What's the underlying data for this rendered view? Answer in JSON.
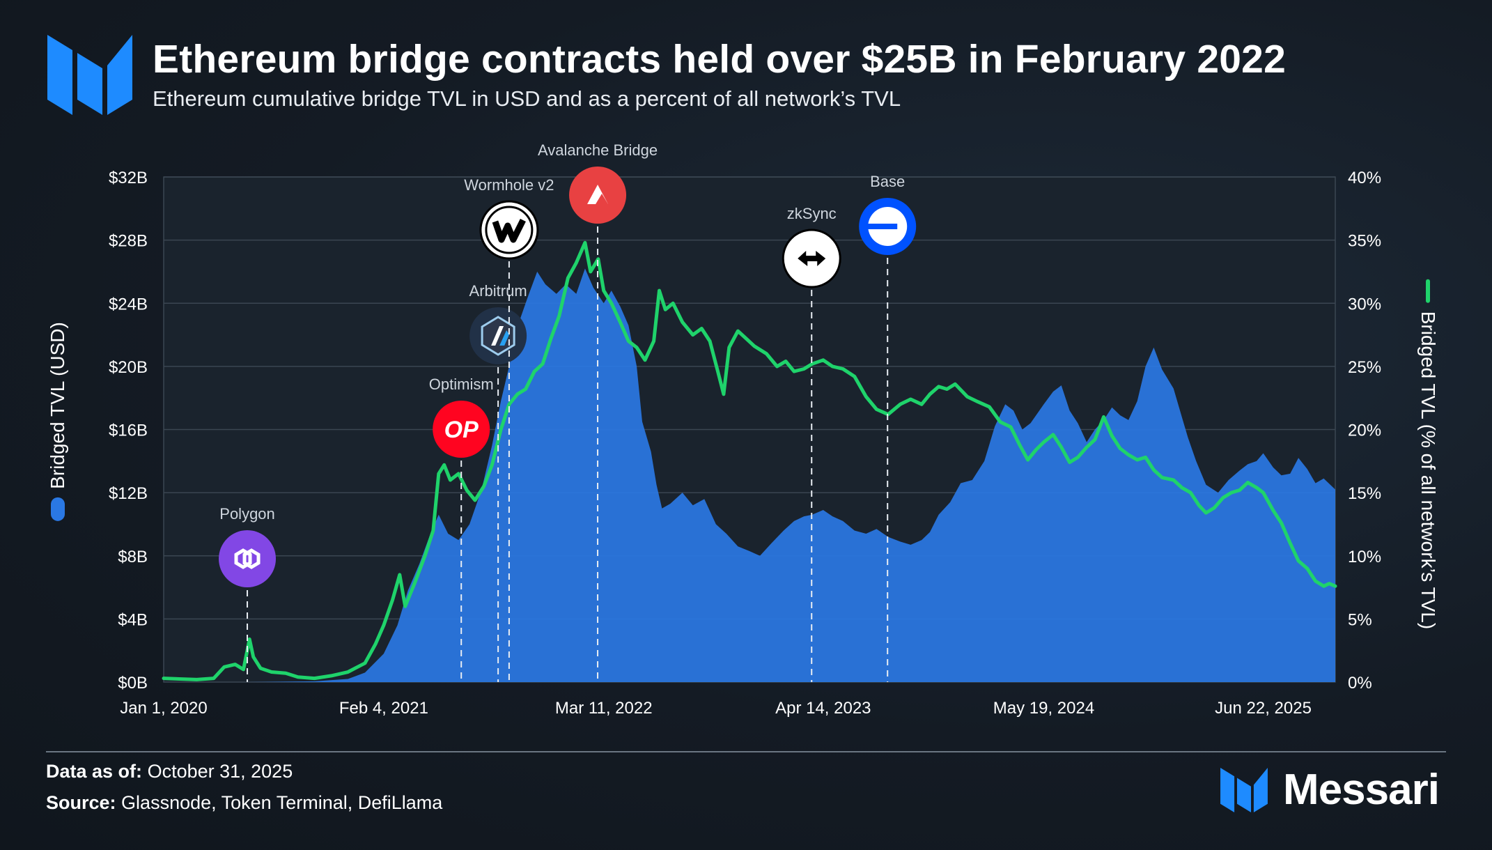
{
  "header": {
    "title": "Ethereum bridge contracts held over $25B in February 2022",
    "subtitle": "Ethereum cumulative bridge TVL in USD and as a percent of all network’s TVL"
  },
  "footer": {
    "data_as_of_label": "Data as of:",
    "data_as_of_value": "October 31, 2025",
    "source_label": "Source:",
    "source_value": "Glassnode, Token Terminal, DefiLlama",
    "brand": "Messari"
  },
  "colors": {
    "area": "#2a78e4",
    "line": "#1fd36b",
    "grid": "#3b4652",
    "accent": "#1e8bff"
  },
  "chart_data": {
    "type": "area",
    "x_start": "2020-01-01",
    "x_end": "2025-10-31",
    "xticks": [
      {
        "date": "2020-01-01",
        "label": "Jan 1, 2020"
      },
      {
        "date": "2021-02-04",
        "label": "Feb 4, 2021"
      },
      {
        "date": "2022-03-11",
        "label": "Mar 11, 2022"
      },
      {
        "date": "2023-04-14",
        "label": "Apr 14, 2023"
      },
      {
        "date": "2024-05-19",
        "label": "May 19, 2024"
      },
      {
        "date": "2025-06-22",
        "label": "Jun 22, 2025"
      }
    ],
    "y_left": {
      "label": "Bridged TVL (USD)",
      "min": 0,
      "max": 32,
      "ticks": [
        "$0B",
        "$4B",
        "$8B",
        "$12B",
        "$16B",
        "$20B",
        "$24B",
        "$28B",
        "$32B"
      ]
    },
    "y_right": {
      "label": "Bridged TVL (% of all network’s TVL)",
      "min": 0,
      "max": 40,
      "ticks": [
        "0%",
        "5%",
        "10%",
        "15%",
        "20%",
        "25%",
        "30%",
        "35%",
        "40%"
      ]
    },
    "series": [
      {
        "name": "Bridged TVL (USD)",
        "type": "area",
        "unit": "$B",
        "points": [
          [
            "2020-01-01",
            0
          ],
          [
            "2020-06-01",
            0
          ],
          [
            "2020-10-01",
            0.05
          ],
          [
            "2020-12-01",
            0.2
          ],
          [
            "2021-01-01",
            0.6
          ],
          [
            "2021-02-04",
            1.8
          ],
          [
            "2021-03-01",
            3.6
          ],
          [
            "2021-03-20",
            5.8
          ],
          [
            "2021-04-10",
            7.5
          ],
          [
            "2021-05-01",
            9.5
          ],
          [
            "2021-05-15",
            10.6
          ],
          [
            "2021-06-01",
            9.4
          ],
          [
            "2021-06-20",
            9.0
          ],
          [
            "2021-07-10",
            10.0
          ],
          [
            "2021-08-01",
            12.2
          ],
          [
            "2021-08-20",
            15.0
          ],
          [
            "2021-09-05",
            17.8
          ],
          [
            "2021-09-20",
            20.0
          ],
          [
            "2021-10-10",
            23.0
          ],
          [
            "2021-10-25",
            24.5
          ],
          [
            "2021-11-10",
            26.0
          ],
          [
            "2021-11-25",
            25.2
          ],
          [
            "2021-12-15",
            24.6
          ],
          [
            "2022-01-01",
            25.2
          ],
          [
            "2022-01-20",
            24.6
          ],
          [
            "2022-02-05",
            26.2
          ],
          [
            "2022-02-20",
            25.0
          ],
          [
            "2022-03-11",
            24.0
          ],
          [
            "2022-03-25",
            24.8
          ],
          [
            "2022-04-10",
            23.8
          ],
          [
            "2022-04-25",
            22.6
          ],
          [
            "2022-05-10",
            20.0
          ],
          [
            "2022-05-20",
            16.5
          ],
          [
            "2022-06-05",
            14.6
          ],
          [
            "2022-06-15",
            12.5
          ],
          [
            "2022-06-25",
            11.0
          ],
          [
            "2022-07-10",
            11.3
          ],
          [
            "2022-08-01",
            12.0
          ],
          [
            "2022-08-20",
            11.2
          ],
          [
            "2022-09-10",
            11.6
          ],
          [
            "2022-10-01",
            10.0
          ],
          [
            "2022-10-20",
            9.4
          ],
          [
            "2022-11-10",
            8.6
          ],
          [
            "2022-12-01",
            8.3
          ],
          [
            "2022-12-20",
            8.0
          ],
          [
            "2023-01-10",
            8.8
          ],
          [
            "2023-02-01",
            9.6
          ],
          [
            "2023-02-20",
            10.2
          ],
          [
            "2023-03-10",
            10.5
          ],
          [
            "2023-03-25",
            10.6
          ],
          [
            "2023-04-14",
            10.9
          ],
          [
            "2023-05-01",
            10.5
          ],
          [
            "2023-05-20",
            10.2
          ],
          [
            "2023-06-10",
            9.6
          ],
          [
            "2023-07-01",
            9.4
          ],
          [
            "2023-07-20",
            9.7
          ],
          [
            "2023-08-10",
            9.2
          ],
          [
            "2023-09-01",
            8.9
          ],
          [
            "2023-09-20",
            8.7
          ],
          [
            "2023-10-10",
            9.0
          ],
          [
            "2023-10-25",
            9.5
          ],
          [
            "2023-11-10",
            10.6
          ],
          [
            "2023-12-01",
            11.4
          ],
          [
            "2023-12-20",
            12.6
          ],
          [
            "2024-01-10",
            12.8
          ],
          [
            "2024-02-01",
            14.0
          ],
          [
            "2024-02-20",
            16.2
          ],
          [
            "2024-03-10",
            17.6
          ],
          [
            "2024-03-25",
            17.2
          ],
          [
            "2024-04-10",
            16.0
          ],
          [
            "2024-04-25",
            16.4
          ],
          [
            "2024-05-19",
            17.6
          ],
          [
            "2024-06-05",
            18.4
          ],
          [
            "2024-06-20",
            18.8
          ],
          [
            "2024-07-05",
            17.2
          ],
          [
            "2024-07-20",
            16.4
          ],
          [
            "2024-08-05",
            15.2
          ],
          [
            "2024-08-20",
            16.0
          ],
          [
            "2024-09-05",
            16.6
          ],
          [
            "2024-09-20",
            17.4
          ],
          [
            "2024-10-05",
            16.9
          ],
          [
            "2024-10-20",
            16.6
          ],
          [
            "2024-11-05",
            17.8
          ],
          [
            "2024-11-20",
            20.0
          ],
          [
            "2024-12-05",
            21.2
          ],
          [
            "2024-12-20",
            19.8
          ],
          [
            "2025-01-10",
            18.6
          ],
          [
            "2025-01-25",
            16.8
          ],
          [
            "2025-02-05",
            15.5
          ],
          [
            "2025-02-20",
            14.0
          ],
          [
            "2025-03-10",
            12.5
          ],
          [
            "2025-04-01",
            12.0
          ],
          [
            "2025-04-20",
            12.8
          ],
          [
            "2025-05-10",
            13.4
          ],
          [
            "2025-05-25",
            13.8
          ],
          [
            "2025-06-10",
            14.0
          ],
          [
            "2025-06-22",
            14.5
          ],
          [
            "2025-07-10",
            13.6
          ],
          [
            "2025-07-25",
            13.1
          ],
          [
            "2025-08-10",
            13.2
          ],
          [
            "2025-08-25",
            14.2
          ],
          [
            "2025-09-10",
            13.5
          ],
          [
            "2025-09-25",
            12.6
          ],
          [
            "2025-10-10",
            12.9
          ],
          [
            "2025-10-31",
            12.2
          ]
        ]
      },
      {
        "name": "Bridged TVL (% of all network’s TVL)",
        "type": "line",
        "unit": "%",
        "points": [
          [
            "2020-01-01",
            0.3
          ],
          [
            "2020-03-01",
            0.2
          ],
          [
            "2020-04-01",
            0.3
          ],
          [
            "2020-04-20",
            1.2
          ],
          [
            "2020-05-10",
            1.4
          ],
          [
            "2020-05-25",
            1.0
          ],
          [
            "2020-06-05",
            3.4
          ],
          [
            "2020-06-12",
            2.0
          ],
          [
            "2020-06-25",
            1.1
          ],
          [
            "2020-07-15",
            0.8
          ],
          [
            "2020-08-10",
            0.7
          ],
          [
            "2020-09-01",
            0.4
          ],
          [
            "2020-10-01",
            0.3
          ],
          [
            "2020-11-01",
            0.5
          ],
          [
            "2020-12-01",
            0.8
          ],
          [
            "2021-01-01",
            1.5
          ],
          [
            "2021-01-20",
            3.0
          ],
          [
            "2021-02-04",
            4.5
          ],
          [
            "2021-02-20",
            6.5
          ],
          [
            "2021-03-05",
            8.5
          ],
          [
            "2021-03-15",
            6.0
          ],
          [
            "2021-04-01",
            7.8
          ],
          [
            "2021-04-20",
            10.0
          ],
          [
            "2021-05-05",
            12.0
          ],
          [
            "2021-05-15",
            16.5
          ],
          [
            "2021-05-25",
            17.2
          ],
          [
            "2021-06-05",
            16.0
          ],
          [
            "2021-06-20",
            16.5
          ],
          [
            "2021-07-05",
            15.2
          ],
          [
            "2021-07-20",
            14.4
          ],
          [
            "2021-08-05",
            15.5
          ],
          [
            "2021-08-20",
            17.2
          ],
          [
            "2021-09-05",
            20.0
          ],
          [
            "2021-09-20",
            22.0
          ],
          [
            "2021-10-05",
            22.8
          ],
          [
            "2021-10-20",
            23.2
          ],
          [
            "2021-11-05",
            24.6
          ],
          [
            "2021-11-20",
            25.2
          ],
          [
            "2021-12-05",
            27.2
          ],
          [
            "2021-12-20",
            29.0
          ],
          [
            "2022-01-05",
            32.0
          ],
          [
            "2022-01-20",
            33.2
          ],
          [
            "2022-02-05",
            34.8
          ],
          [
            "2022-02-15",
            32.5
          ],
          [
            "2022-03-01",
            33.5
          ],
          [
            "2022-03-11",
            31.0
          ],
          [
            "2022-03-25",
            30.0
          ],
          [
            "2022-04-10",
            28.5
          ],
          [
            "2022-04-25",
            27.0
          ],
          [
            "2022-05-10",
            26.5
          ],
          [
            "2022-05-25",
            25.5
          ],
          [
            "2022-06-10",
            27.0
          ],
          [
            "2022-06-20",
            31.0
          ],
          [
            "2022-07-01",
            29.5
          ],
          [
            "2022-07-15",
            30.0
          ],
          [
            "2022-08-01",
            28.5
          ],
          [
            "2022-08-20",
            27.5
          ],
          [
            "2022-09-05",
            28.0
          ],
          [
            "2022-09-20",
            27.0
          ],
          [
            "2022-10-05",
            24.5
          ],
          [
            "2022-10-15",
            22.8
          ],
          [
            "2022-10-25",
            26.5
          ],
          [
            "2022-11-10",
            27.8
          ],
          [
            "2022-11-25",
            27.2
          ],
          [
            "2022-12-10",
            26.6
          ],
          [
            "2023-01-01",
            26.0
          ],
          [
            "2023-01-20",
            25.0
          ],
          [
            "2023-02-05",
            25.4
          ],
          [
            "2023-02-20",
            24.6
          ],
          [
            "2023-03-10",
            24.8
          ],
          [
            "2023-03-25",
            25.2
          ],
          [
            "2023-04-14",
            25.5
          ],
          [
            "2023-05-01",
            25.0
          ],
          [
            "2023-05-20",
            24.8
          ],
          [
            "2023-06-10",
            24.2
          ],
          [
            "2023-07-01",
            22.6
          ],
          [
            "2023-07-20",
            21.6
          ],
          [
            "2023-08-10",
            21.2
          ],
          [
            "2023-09-01",
            22.0
          ],
          [
            "2023-09-20",
            22.4
          ],
          [
            "2023-10-10",
            22.0
          ],
          [
            "2023-10-25",
            22.8
          ],
          [
            "2023-11-10",
            23.4
          ],
          [
            "2023-11-25",
            23.2
          ],
          [
            "2023-12-10",
            23.6
          ],
          [
            "2024-01-01",
            22.6
          ],
          [
            "2024-01-20",
            22.2
          ],
          [
            "2024-02-10",
            21.8
          ],
          [
            "2024-03-01",
            20.6
          ],
          [
            "2024-03-20",
            20.2
          ],
          [
            "2024-04-05",
            18.8
          ],
          [
            "2024-04-20",
            17.6
          ],
          [
            "2024-05-05",
            18.4
          ],
          [
            "2024-05-19",
            19.0
          ],
          [
            "2024-06-05",
            19.6
          ],
          [
            "2024-06-20",
            18.6
          ],
          [
            "2024-07-05",
            17.4
          ],
          [
            "2024-07-20",
            17.8
          ],
          [
            "2024-08-05",
            18.6
          ],
          [
            "2024-08-20",
            19.2
          ],
          [
            "2024-09-05",
            21.0
          ],
          [
            "2024-09-20",
            19.5
          ],
          [
            "2024-10-05",
            18.5
          ],
          [
            "2024-10-20",
            18.0
          ],
          [
            "2024-11-05",
            17.6
          ],
          [
            "2024-11-20",
            17.8
          ],
          [
            "2024-12-05",
            16.8
          ],
          [
            "2024-12-20",
            16.2
          ],
          [
            "2025-01-10",
            16.0
          ],
          [
            "2025-01-25",
            15.4
          ],
          [
            "2025-02-10",
            15.0
          ],
          [
            "2025-02-25",
            14.0
          ],
          [
            "2025-03-10",
            13.4
          ],
          [
            "2025-03-25",
            13.8
          ],
          [
            "2025-04-10",
            14.6
          ],
          [
            "2025-04-25",
            15.0
          ],
          [
            "2025-05-10",
            15.2
          ],
          [
            "2025-05-25",
            15.8
          ],
          [
            "2025-06-10",
            15.4
          ],
          [
            "2025-06-22",
            15.0
          ],
          [
            "2025-07-10",
            13.6
          ],
          [
            "2025-07-25",
            12.6
          ],
          [
            "2025-08-10",
            11.0
          ],
          [
            "2025-08-25",
            9.6
          ],
          [
            "2025-09-10",
            9.0
          ],
          [
            "2025-09-25",
            8.0
          ],
          [
            "2025-10-10",
            7.6
          ],
          [
            "2025-10-20",
            7.8
          ],
          [
            "2025-10-31",
            7.6
          ]
        ]
      }
    ],
    "annotations": [
      {
        "label": "Polygon",
        "date": "2020-06-01",
        "icon": "polygon-icon",
        "color": "#8247e5"
      },
      {
        "label": "Optimism",
        "date": "2021-06-25",
        "icon": "optimism-icon",
        "color": "#ff0420",
        "glyph": "OP"
      },
      {
        "label": "Arbitrum",
        "date": "2021-08-31",
        "icon": "arbitrum-icon",
        "color": "#213147"
      },
      {
        "label": "Wormhole v2",
        "date": "2021-09-20",
        "icon": "wormhole-icon",
        "color": "#ffffff"
      },
      {
        "label": "Avalanche Bridge",
        "date": "2022-02-28",
        "icon": "avalanche-icon",
        "color": "#e84142"
      },
      {
        "label": "zkSync",
        "date": "2023-03-24",
        "icon": "zksync-icon",
        "color": "#ffffff"
      },
      {
        "label": "Base",
        "date": "2023-08-09",
        "icon": "base-icon",
        "color": "#0052ff"
      }
    ],
    "grid": true,
    "legend": "axis-titles"
  }
}
